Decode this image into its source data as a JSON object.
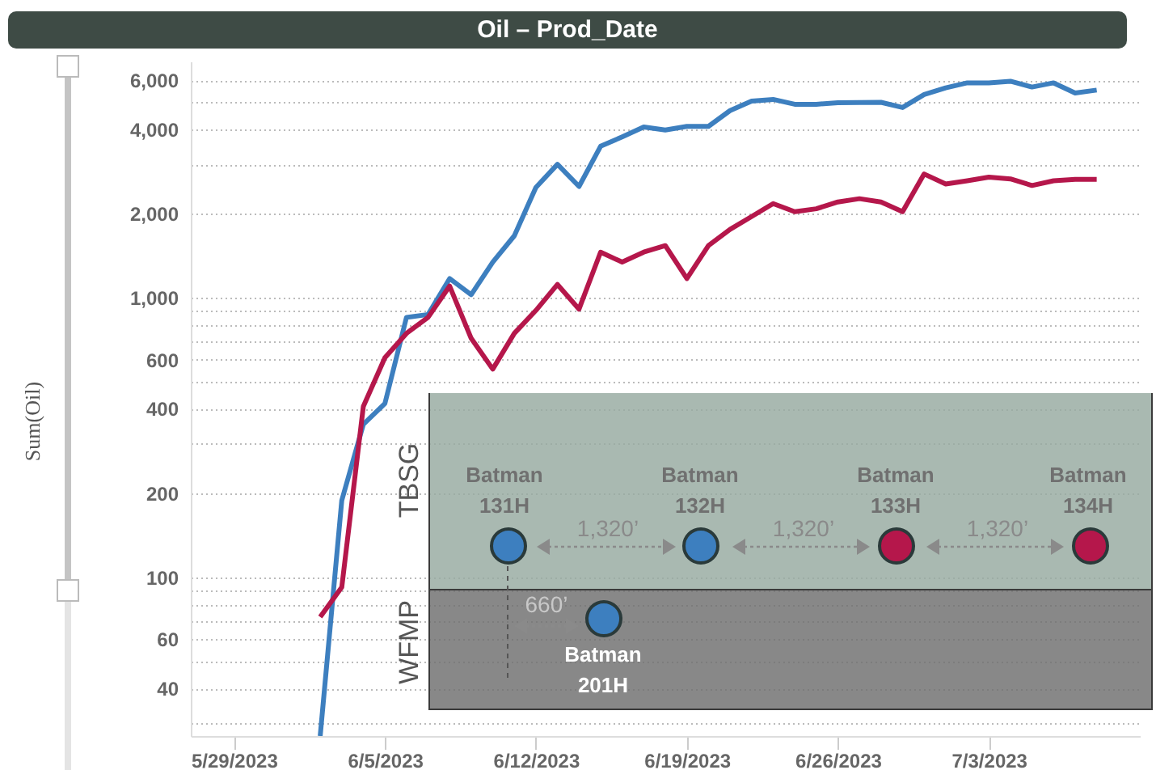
{
  "chart_data": {
    "type": "line",
    "title": "Oil – Prod_Date",
    "ylabel": "Sum(Oil)",
    "x": [
      "2023-06-02",
      "2023-06-03",
      "2023-06-04",
      "2023-06-05",
      "2023-06-06",
      "2023-06-07",
      "2023-06-08",
      "2023-06-09",
      "2023-06-10",
      "2023-06-11",
      "2023-06-12",
      "2023-06-13",
      "2023-06-14",
      "2023-06-15",
      "2023-06-16",
      "2023-06-17",
      "2023-06-18",
      "2023-06-19",
      "2023-06-20",
      "2023-06-21",
      "2023-06-22",
      "2023-06-23",
      "2023-06-24",
      "2023-06-25",
      "2023-06-26",
      "2023-06-27",
      "2023-06-28",
      "2023-06-29",
      "2023-06-30",
      "2023-07-01",
      "2023-07-02",
      "2023-07-03",
      "2023-07-04",
      "2023-07-05",
      "2023-07-06",
      "2023-07-07",
      "2023-07-08"
    ],
    "series": [
      {
        "color": "#3d7fbf",
        "values": [
          27,
          188,
          352,
          418,
          850,
          870,
          1170,
          1025,
          1340,
          1665,
          2480,
          3000,
          2500,
          3480,
          3760,
          4080,
          3980,
          4100,
          4100,
          4670,
          5050,
          5120,
          4920,
          4920,
          4980,
          4990,
          5000,
          4790,
          5330,
          5630,
          5870,
          5870,
          5950,
          5670,
          5870,
          5400,
          5530
        ]
      },
      {
        "color": "#b5174b",
        "values": [
          72,
          92,
          408,
          610,
          745,
          850,
          1100,
          715,
          555,
          745,
          900,
          1115,
          910,
          1455,
          1340,
          1455,
          1535,
          1170,
          1535,
          1755,
          1950,
          2170,
          2030,
          2080,
          2200,
          2260,
          2200,
          2030,
          2770,
          2550,
          2620,
          2700,
          2660,
          2520,
          2620,
          2650,
          2650
        ]
      }
    ],
    "xlim": [
      "2023-05-27",
      "2023-07-10"
    ],
    "xticks": [
      {
        "value": "2023-05-29",
        "label": "5/29/2023"
      },
      {
        "value": "2023-06-05",
        "label": "6/5/2023"
      },
      {
        "value": "2023-06-12",
        "label": "6/12/2023"
      },
      {
        "value": "2023-06-19",
        "label": "6/19/2023"
      },
      {
        "value": "2023-06-26",
        "label": "6/26/2023"
      },
      {
        "value": "2023-07-03",
        "label": "7/3/2023"
      }
    ],
    "ylim": [
      27,
      7000
    ],
    "yticks": [
      {
        "value": 30,
        "label": null
      },
      40,
      {
        "value": 50,
        "label": null
      },
      60,
      {
        "value": 70,
        "label": null
      },
      {
        "value": 80,
        "label": null
      },
      {
        "value": 90,
        "label": null
      },
      100,
      200,
      {
        "value": 300,
        "label": null
      },
      400,
      {
        "value": 500,
        "label": null
      },
      600,
      {
        "value": 700,
        "label": null
      },
      {
        "value": 800,
        "label": null
      },
      {
        "value": 900,
        "label": null
      },
      {
        "value": 1000,
        "label": "1,000"
      },
      {
        "value": 2000,
        "label": "2,000"
      },
      {
        "value": 3000,
        "label": null
      },
      {
        "value": 4000,
        "label": "4,000"
      },
      {
        "value": 5000,
        "label": null
      },
      {
        "value": 6000,
        "label": "6,000"
      }
    ],
    "log": true,
    "grid": "y",
    "legend": false,
    "line_style": "solid",
    "marker": "none",
    "annotations": [
      "TBSG",
      "WFMP",
      "Batman 131H",
      "Batman 132H",
      "Batman 133H",
      "Batman 134H",
      "Batman 201H",
      "1,320’",
      "1,320’",
      "1,320’",
      "660’"
    ]
  }
}
